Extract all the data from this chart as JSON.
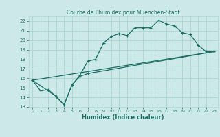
{
  "title": "Courbe de l'humidex pour Muenchen-Stadt",
  "xlabel": "Humidex (Indice chaleur)",
  "xlim": [
    -0.5,
    23.5
  ],
  "ylim": [
    13,
    22.5
  ],
  "yticks": [
    13,
    14,
    15,
    16,
    17,
    18,
    19,
    20,
    21,
    22
  ],
  "xticks": [
    0,
    1,
    2,
    3,
    4,
    5,
    6,
    7,
    8,
    9,
    10,
    11,
    12,
    13,
    14,
    15,
    16,
    17,
    18,
    19,
    20,
    21,
    22,
    23
  ],
  "background_color": "#cde8e8",
  "grid_color": "#aad4d4",
  "line_color": "#1a6e62",
  "line1_x": [
    0,
    1,
    2,
    3,
    4,
    5,
    6,
    7,
    8,
    9,
    10,
    11,
    12,
    13,
    14,
    15,
    16,
    17,
    18,
    19,
    20,
    21,
    22,
    23
  ],
  "line1_y": [
    15.8,
    14.7,
    14.8,
    14.1,
    13.2,
    15.3,
    16.3,
    17.8,
    18.0,
    19.7,
    20.4,
    20.7,
    20.5,
    21.3,
    21.3,
    21.3,
    22.1,
    21.7,
    21.5,
    20.8,
    20.6,
    19.5,
    18.8,
    18.8
  ],
  "line2_x": [
    0,
    3,
    4,
    5,
    6,
    7,
    23
  ],
  "line2_y": [
    15.8,
    14.1,
    13.2,
    15.3,
    16.2,
    16.5,
    18.8
  ],
  "line3_x": [
    0,
    23
  ],
  "line3_y": [
    15.8,
    18.8
  ]
}
